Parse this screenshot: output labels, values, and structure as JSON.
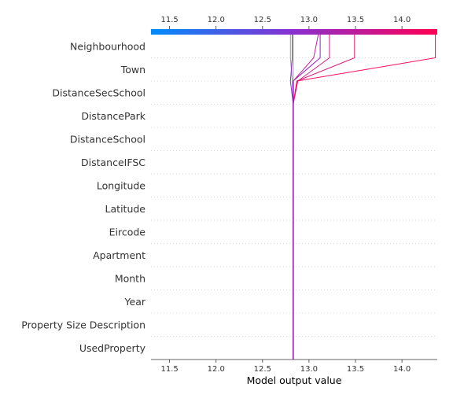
{
  "chart_data": {
    "type": "decision_plot",
    "xlabel": "Model output value",
    "xlim": [
      11.3,
      14.38
    ],
    "x_ticks": [
      11.5,
      12.0,
      12.5,
      13.0,
      13.5,
      14.0
    ],
    "x_tick_labels": [
      "11.5",
      "12.0",
      "12.5",
      "13.0",
      "13.5",
      "14.0"
    ],
    "base_value": 12.83,
    "colors": {
      "low": "#008bfb",
      "mid": "#8a2fd0",
      "high": "#ff0052"
    },
    "features": [
      "UsedProperty",
      "Property Size Description",
      "Year",
      "Month",
      "Apartment",
      "Eircode",
      "Latitude",
      "Longitude",
      "DistanceIFSC",
      "DistanceSchool",
      "DistancePark",
      "DistanceSecSchool",
      "Town",
      "Neighbourhood"
    ],
    "series": [
      {
        "color": "#9a1fc0",
        "values": [
          12.83,
          12.83,
          12.83,
          12.83,
          12.83,
          12.83,
          12.83,
          12.83,
          12.83,
          12.83,
          12.83,
          12.83,
          12.83,
          13.12,
          13.12
        ]
      },
      {
        "color": "#c2249a",
        "values": [
          12.83,
          12.83,
          12.83,
          12.83,
          12.83,
          12.83,
          12.83,
          12.83,
          12.83,
          12.83,
          12.83,
          12.83,
          12.83,
          13.05,
          13.1
        ]
      },
      {
        "color": "#d11e8a",
        "values": [
          12.83,
          12.83,
          12.83,
          12.83,
          12.83,
          12.83,
          12.83,
          12.83,
          12.83,
          12.83,
          12.83,
          12.83,
          12.88,
          13.22,
          13.22
        ]
      },
      {
        "color": "#e0197a",
        "values": [
          12.83,
          12.83,
          12.83,
          12.83,
          12.83,
          12.83,
          12.83,
          12.83,
          12.83,
          12.83,
          12.83,
          12.83,
          12.87,
          13.49,
          13.49
        ]
      },
      {
        "color": "#ff0a5a",
        "values": [
          12.83,
          12.83,
          12.83,
          12.83,
          12.83,
          12.83,
          12.83,
          12.83,
          12.83,
          12.83,
          12.83,
          12.83,
          12.87,
          14.36,
          14.36
        ]
      },
      {
        "color": "#9a9aa8",
        "values": [
          12.83,
          12.83,
          12.83,
          12.83,
          12.83,
          12.83,
          12.83,
          12.83,
          12.83,
          12.83,
          12.83,
          12.83,
          12.82,
          12.8,
          12.8
        ]
      },
      {
        "color": "#8a30c8",
        "values": [
          12.83,
          12.83,
          12.83,
          12.83,
          12.83,
          12.83,
          12.83,
          12.83,
          12.83,
          12.83,
          12.83,
          12.83,
          12.8,
          12.82,
          12.82
        ]
      }
    ]
  }
}
